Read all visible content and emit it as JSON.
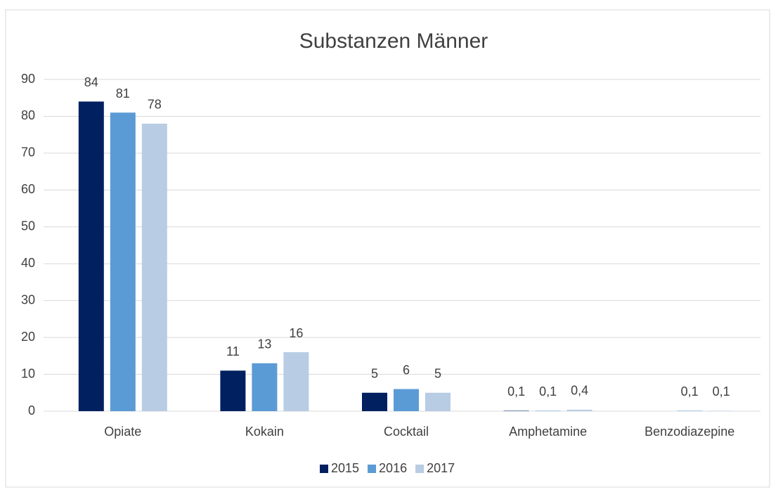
{
  "chart_data": {
    "type": "bar",
    "title": "Substanzen Männer",
    "categories": [
      "Opiate",
      "Kokain",
      "Cocktail",
      "Amphetamine",
      "Benzodiazepine"
    ],
    "series": [
      {
        "name": "2015",
        "color": "#002060",
        "values": [
          84,
          11,
          5,
          0.1,
          null
        ],
        "value_labels": [
          "84",
          "11",
          "5",
          "0,1",
          null
        ]
      },
      {
        "name": "2016",
        "color": "#5b9bd5",
        "values": [
          81,
          13,
          6,
          0.1,
          0.1
        ],
        "value_labels": [
          "81",
          "13",
          "6",
          "0,1",
          "0,1"
        ]
      },
      {
        "name": "2017",
        "color": "#b8cce4",
        "values": [
          78,
          16,
          5,
          0.4,
          0.1
        ],
        "value_labels": [
          "78",
          "16",
          "5",
          "0,4",
          "0,1"
        ]
      }
    ],
    "ylim": [
      0,
      90
    ],
    "yticks": [
      0,
      10,
      20,
      30,
      40,
      50,
      60,
      70,
      80,
      90
    ],
    "grid": true,
    "legend": "bottom"
  }
}
